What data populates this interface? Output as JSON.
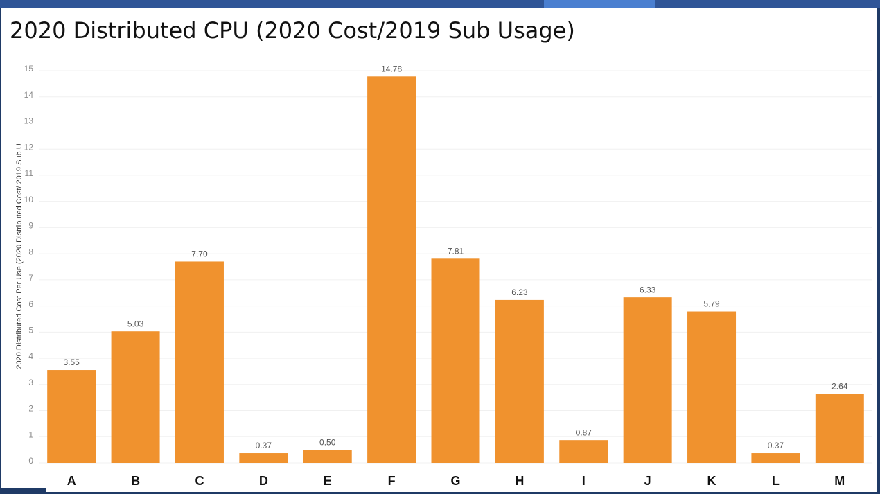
{
  "chart_data": {
    "type": "bar",
    "title": "2020 Distributed CPU (2020 Cost/2019 Sub Usage)",
    "y_label": "2020 Distributed Cost Per Use (2020 Distributed Cost/ 2019 Sub U",
    "categories": [
      "A",
      "B",
      "C",
      "D",
      "E",
      "F",
      "G",
      "H",
      "I",
      "J",
      "K",
      "L",
      "M"
    ],
    "values": [
      3.55,
      5.03,
      7.7,
      0.37,
      0.5,
      14.78,
      7.81,
      6.23,
      0.87,
      6.33,
      5.79,
      0.37,
      2.64
    ],
    "value_labels": [
      "3.55",
      "5.03",
      "7.70",
      "0.37",
      "0.50",
      "14.78",
      "7.81",
      "6.23",
      "0.87",
      "6.33",
      "5.79",
      "0.37",
      "2.64"
    ],
    "color": "#f0922e",
    "ylim": [
      0,
      15
    ],
    "yticks": [
      0,
      1,
      2,
      3,
      4,
      5,
      6,
      7,
      8,
      9,
      10,
      11,
      12,
      13,
      14,
      15
    ],
    "grid": true
  }
}
